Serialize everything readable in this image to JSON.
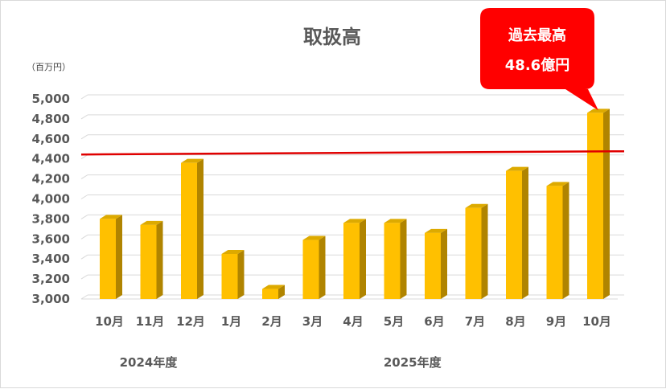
{
  "chart_data": {
    "type": "bar",
    "title": "取扱高",
    "unit_label": "（百万円）",
    "categories": [
      "10月",
      "11月",
      "12月",
      "1月",
      "2月",
      "3月",
      "4月",
      "5月",
      "6月",
      "7月",
      "8月",
      "9月",
      "10月"
    ],
    "values": [
      3800,
      3740,
      4360,
      3450,
      3100,
      3590,
      3760,
      3760,
      3660,
      3910,
      4280,
      4130,
      4860
    ],
    "ylim": [
      3000,
      5000
    ],
    "yticks": [
      "3,000",
      "3,200",
      "3,400",
      "3,600",
      "3,800",
      "4,000",
      "4,200",
      "4,400",
      "4,600",
      "4,800",
      "5,000"
    ],
    "ytick_values": [
      3000,
      3200,
      3400,
      3600,
      3800,
      4000,
      4200,
      4400,
      4600,
      4800,
      5000
    ],
    "groups": [
      {
        "label": "2024年度",
        "start": 0,
        "end": 2
      },
      {
        "label": "2025年度",
        "start": 3,
        "end": 12
      }
    ],
    "reference_line": {
      "value": 4420,
      "color": "#e00000"
    },
    "annotation": {
      "line1": "過去最高",
      "line2": "48.6億円",
      "target_index": 12,
      "color": "#ff0000"
    },
    "bar_color": "#ffc000",
    "grid": true
  }
}
